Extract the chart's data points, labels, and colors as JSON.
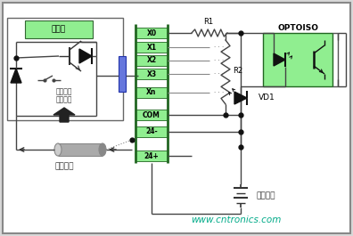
{
  "bg_color": "#d8d8d8",
  "white_bg": "#ffffff",
  "green_fill": "#90EE90",
  "wire_color": "#444444",
  "watermark": "www.cntronics.com",
  "watermark_color": "#00aa88",
  "title_box": "主电路",
  "label_zhiliu1": "直流两线",
  "label_zhiliu2": "接近开关",
  "label_waizhi": "外置电源",
  "label_neizhi": "内置电源",
  "label_optoiso": "OPTOISO",
  "label_R1": "R1",
  "label_R2": "R2",
  "label_VD1": "VD1",
  "terminals": [
    "X0",
    "X1",
    "X2",
    "X3",
    "Xn",
    "COM",
    "24-",
    "24+"
  ],
  "fig_width": 3.96,
  "fig_height": 2.65,
  "dpi": 100
}
